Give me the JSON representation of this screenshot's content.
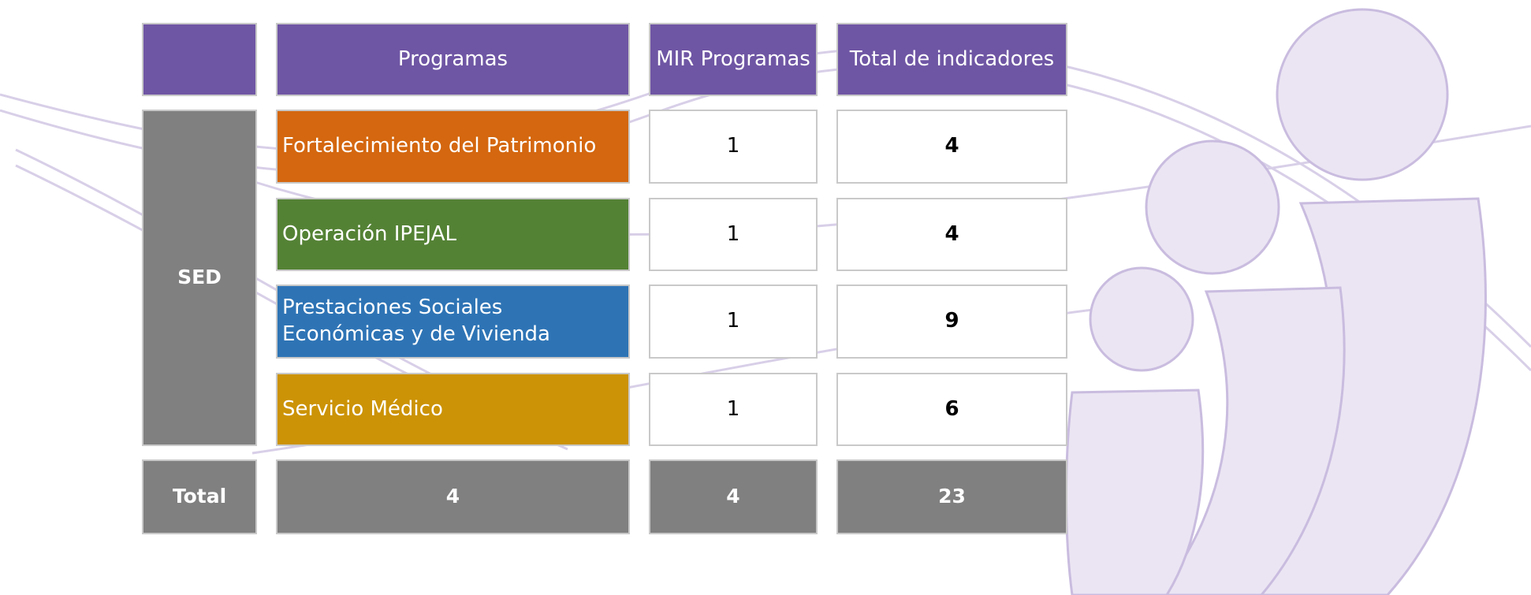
{
  "table": {
    "header": [
      "Programas",
      "MIR Programas",
      "Total de indicadores"
    ],
    "group": "SED",
    "rows": [
      {
        "programa": "Fortalecimiento del Patrimonio",
        "color": "#d4670f",
        "mir": 1,
        "total": 4
      },
      {
        "programa": "Operación IPEJAL",
        "color": "#548235",
        "mir": 1,
        "total": 4
      },
      {
        "programa": "Prestaciones Sociales Económicas y de Vivienda",
        "color": "#2e74b5",
        "mir": 1,
        "total": 9
      },
      {
        "programa": "Servicio Médico",
        "color": "#cc9306",
        "mir": 1,
        "total": 6
      }
    ],
    "total_row": {
      "label": "Total",
      "values": [
        4,
        4,
        23
      ]
    }
  }
}
